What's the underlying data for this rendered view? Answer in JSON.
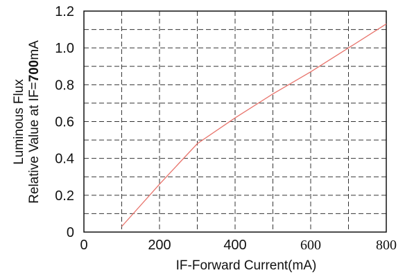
{
  "chart_data": {
    "type": "line",
    "xlabel": "IF-Forward Current(mA)",
    "ylabel_line1": "Luminous Flux",
    "ylabel_line2_prefix": "Relative Value at IF=",
    "ylabel_line2_value": "700",
    "ylabel_line2_unit": "mA",
    "xlim": [
      0,
      800
    ],
    "ylim": [
      0,
      1.2
    ],
    "x_ticks": [
      0,
      200,
      400,
      600,
      800
    ],
    "x_tick_labels": [
      "0",
      "200",
      "400",
      "600",
      "800"
    ],
    "y_ticks": [
      0,
      0.2,
      0.4,
      0.6,
      0.8,
      1.0,
      1.2
    ],
    "y_tick_labels": [
      "0",
      "0.2",
      "0.4",
      "0.6",
      "0.8",
      "1.0",
      "1.2"
    ],
    "x_grid": [
      100,
      200,
      300,
      400,
      500,
      600,
      700
    ],
    "y_grid": [
      0.1,
      0.2,
      0.3,
      0.4,
      0.5,
      0.6,
      0.7,
      0.8,
      0.9,
      1.0,
      1.1
    ],
    "grid": true,
    "series": [
      {
        "color": "#e8736b",
        "x": [
          100,
          200,
          300,
          400,
          500,
          600,
          700,
          800
        ],
        "y": [
          0.03,
          0.26,
          0.48,
          0.62,
          0.75,
          0.87,
          1.0,
          1.13
        ]
      }
    ]
  }
}
